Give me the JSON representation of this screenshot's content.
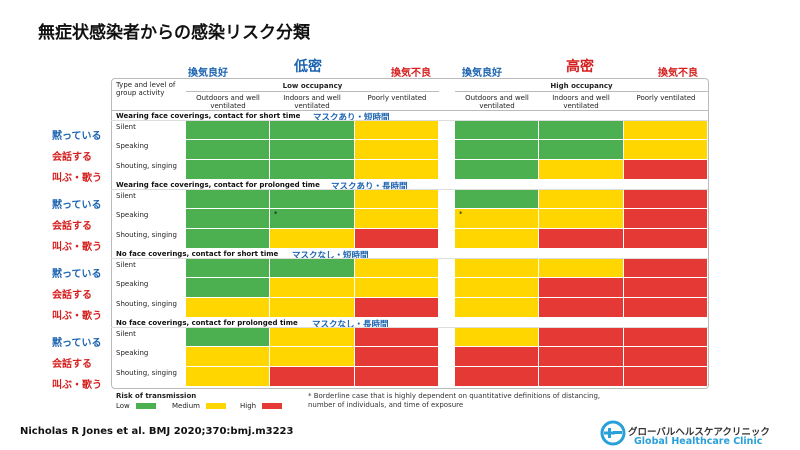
{
  "title": "無症状感染者からの感染リスク分類",
  "header": {
    "low_good": "換気良好",
    "low_label": "低密",
    "low_bad": "換気不良",
    "high_good": "換気良好",
    "high_label": "高密",
    "high_bad": "換気不良"
  },
  "table": {
    "type_label": "Type and level of group activity",
    "low_occupancy": "Low occupancy",
    "high_occupancy": "High occupancy",
    "columns": [
      "Outdoors and well ventilated",
      "Indoors and well ventilated",
      "Poorly ventilated"
    ]
  },
  "side_labels": {
    "silent": "黙っている",
    "speaking": "会話する",
    "shouting": "叫ぶ・歌う"
  },
  "colors": {
    "low": "#4caf50",
    "medium": "#ffd600",
    "high": "#e53935",
    "text_blue": "#1b63b0",
    "text_red": "#d62020"
  },
  "chart_data": {
    "type": "heatmap",
    "title": "無症状感染者からの感染リスク分類",
    "occupancy": [
      "Low occupancy",
      "High occupancy"
    ],
    "ventilation": [
      "Outdoors and well ventilated",
      "Indoors and well ventilated",
      "Poorly ventilated"
    ],
    "activities": [
      "Silent",
      "Speaking",
      "Shouting, singing"
    ],
    "legend": {
      "title": "Risk of transmission",
      "levels": [
        "Low",
        "Medium",
        "High"
      ]
    },
    "groups": [
      {
        "label": "Wearing face coverings, contact for short time",
        "jp": "マスクあり・短時間",
        "rows": [
          [
            "Low",
            "Low",
            "Medium",
            "Low",
            "Low",
            "Medium"
          ],
          [
            "Low",
            "Low",
            "Medium",
            "Low",
            "Low",
            "Medium"
          ],
          [
            "Low",
            "Low",
            "Medium",
            "Low",
            "Medium",
            "High"
          ]
        ]
      },
      {
        "label": "Wearing face coverings, contact for prolonged time",
        "jp": "マスクあり・長時間",
        "rows": [
          [
            "Low",
            "Low",
            "Medium",
            "Low",
            "Medium",
            "High"
          ],
          [
            "Low",
            "Low*",
            "Medium",
            "Medium*",
            "Medium",
            "High"
          ],
          [
            "Low",
            "Medium",
            "High",
            "Medium",
            "High",
            "High"
          ]
        ]
      },
      {
        "label": "No face coverings, contact for short time",
        "jp": "マスクなし・短時間",
        "rows": [
          [
            "Low",
            "Low",
            "Medium",
            "Medium",
            "Medium",
            "High"
          ],
          [
            "Low",
            "Medium",
            "Medium",
            "Medium",
            "High",
            "High"
          ],
          [
            "Medium",
            "Medium",
            "High",
            "Medium",
            "High",
            "High"
          ]
        ]
      },
      {
        "label": "No face coverings, contact for prolonged time",
        "jp": "マスクなし・長時間",
        "rows": [
          [
            "Low",
            "Medium",
            "High",
            "Medium",
            "High",
            "High"
          ],
          [
            "Medium",
            "Medium",
            "High",
            "High",
            "High",
            "High"
          ],
          [
            "Medium",
            "High",
            "High",
            "High",
            "High",
            "High"
          ]
        ]
      }
    ],
    "footnote": "* Borderline case that is highly dependent on quantitative definitions of distancing, number of individuals, and time of exposure"
  },
  "row_labels": [
    "Silent",
    "Speaking",
    "Shouting, singing"
  ],
  "legend": {
    "title": "Risk of transmission",
    "low": "Low",
    "medium": "Medium",
    "high": "High"
  },
  "footnote": "* Borderline case that is highly dependent on quantitative definitions of distancing, number of individuals, and time of exposure",
  "citation": "Nicholas R Jones et al. BMJ 2020;370:bmj.m3223",
  "logo": {
    "jp": "グローバルヘルスケアクリニック",
    "en": "Global Healthcare Clinic"
  }
}
